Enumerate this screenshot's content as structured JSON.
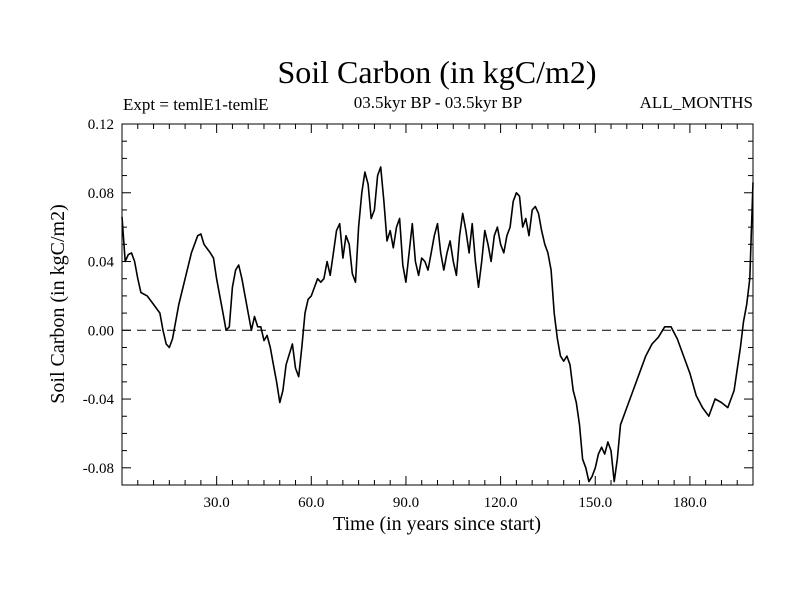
{
  "chart_data": {
    "type": "line",
    "title": "Soil Carbon (in kgC/m2)",
    "subtitle_left": "Expt = temlE1-temlE",
    "subtitle_center": "03.5kyr BP - 03.5kyr BP",
    "subtitle_right": "ALL_MONTHS",
    "xlabel": "Time (in years since start)",
    "ylabel": "Soil Carbon (in kgC/m2)",
    "xlim": [
      0,
      200
    ],
    "ylim": [
      -0.09,
      0.12
    ],
    "x_ticks": [
      30,
      60,
      90,
      120,
      150,
      180
    ],
    "x_tick_labels": [
      "30.0",
      "60.0",
      "90.0",
      "120.0",
      "150.0",
      "180.0"
    ],
    "y_ticks": [
      -0.08,
      -0.04,
      0.0,
      0.04,
      0.08,
      0.12
    ],
    "y_tick_labels": [
      "-0.08",
      "-0.04",
      "0.00",
      "0.04",
      "0.08",
      "0.12"
    ],
    "reference_line": 0.0,
    "series": [
      {
        "name": "Soil Carbon",
        "x": [
          0,
          1,
          2,
          3,
          4,
          5,
          6,
          8,
          10,
          12,
          13,
          14,
          15,
          16,
          18,
          20,
          22,
          24,
          25,
          26,
          28,
          29,
          30,
          32,
          33,
          34,
          35,
          36,
          37,
          38,
          40,
          41,
          42,
          43,
          44,
          45,
          46,
          47,
          48,
          49,
          50,
          51,
          52,
          54,
          55,
          56,
          57,
          58,
          59,
          60,
          62,
          63,
          64,
          65,
          66,
          67,
          68,
          69,
          70,
          71,
          72,
          73,
          74,
          75,
          76,
          77,
          78,
          79,
          80,
          81,
          82,
          83,
          84,
          85,
          86,
          87,
          88,
          89,
          90,
          91,
          92,
          93,
          94,
          95,
          96,
          97,
          98,
          99,
          100,
          101,
          102,
          103,
          104,
          105,
          106,
          107,
          108,
          109,
          110,
          111,
          112,
          113,
          114,
          115,
          116,
          117,
          118,
          119,
          120,
          121,
          122,
          123,
          124,
          125,
          126,
          127,
          128,
          129,
          130,
          131,
          132,
          133,
          134,
          135,
          136,
          137,
          138,
          139,
          140,
          141,
          142,
          143,
          144,
          145,
          146,
          147,
          148,
          149,
          150,
          151,
          152,
          153,
          154,
          155,
          156,
          157,
          158,
          160,
          162,
          164,
          166,
          168,
          170,
          172,
          174,
          176,
          178,
          180,
          182,
          184,
          186,
          188,
          190,
          192,
          194,
          196,
          197,
          198,
          199,
          200
        ],
        "values": [
          0.066,
          0.04,
          0.044,
          0.045,
          0.04,
          0.03,
          0.022,
          0.02,
          0.015,
          0.01,
          0.0,
          -0.008,
          -0.01,
          -0.005,
          0.015,
          0.03,
          0.045,
          0.055,
          0.056,
          0.05,
          0.045,
          0.042,
          0.03,
          0.01,
          0.0,
          0.002,
          0.025,
          0.035,
          0.038,
          0.03,
          0.01,
          0.0,
          0.008,
          0.002,
          0.002,
          -0.006,
          -0.003,
          -0.01,
          -0.02,
          -0.03,
          -0.042,
          -0.035,
          -0.02,
          -0.008,
          -0.022,
          -0.027,
          -0.01,
          0.01,
          0.018,
          0.02,
          0.03,
          0.028,
          0.03,
          0.04,
          0.032,
          0.045,
          0.058,
          0.062,
          0.042,
          0.055,
          0.05,
          0.033,
          0.028,
          0.06,
          0.08,
          0.092,
          0.085,
          0.065,
          0.07,
          0.09,
          0.095,
          0.075,
          0.052,
          0.058,
          0.048,
          0.06,
          0.065,
          0.038,
          0.028,
          0.045,
          0.062,
          0.04,
          0.032,
          0.042,
          0.04,
          0.035,
          0.045,
          0.055,
          0.062,
          0.045,
          0.035,
          0.045,
          0.052,
          0.04,
          0.032,
          0.055,
          0.068,
          0.058,
          0.045,
          0.062,
          0.04,
          0.025,
          0.04,
          0.058,
          0.05,
          0.04,
          0.055,
          0.06,
          0.05,
          0.045,
          0.055,
          0.06,
          0.075,
          0.08,
          0.078,
          0.06,
          0.065,
          0.055,
          0.07,
          0.072,
          0.068,
          0.058,
          0.05,
          0.045,
          0.035,
          0.01,
          -0.005,
          -0.015,
          -0.018,
          -0.015,
          -0.02,
          -0.035,
          -0.042,
          -0.055,
          -0.075,
          -0.08,
          -0.088,
          -0.085,
          -0.08,
          -0.072,
          -0.068,
          -0.072,
          -0.065,
          -0.07,
          -0.088,
          -0.075,
          -0.055,
          -0.045,
          -0.035,
          -0.025,
          -0.015,
          -0.008,
          -0.004,
          0.002,
          0.002,
          -0.005,
          -0.015,
          -0.025,
          -0.038,
          -0.045,
          -0.05,
          -0.04,
          -0.042,
          -0.045,
          -0.035,
          -0.01,
          0.005,
          0.015,
          0.03,
          0.086
        ]
      }
    ]
  }
}
